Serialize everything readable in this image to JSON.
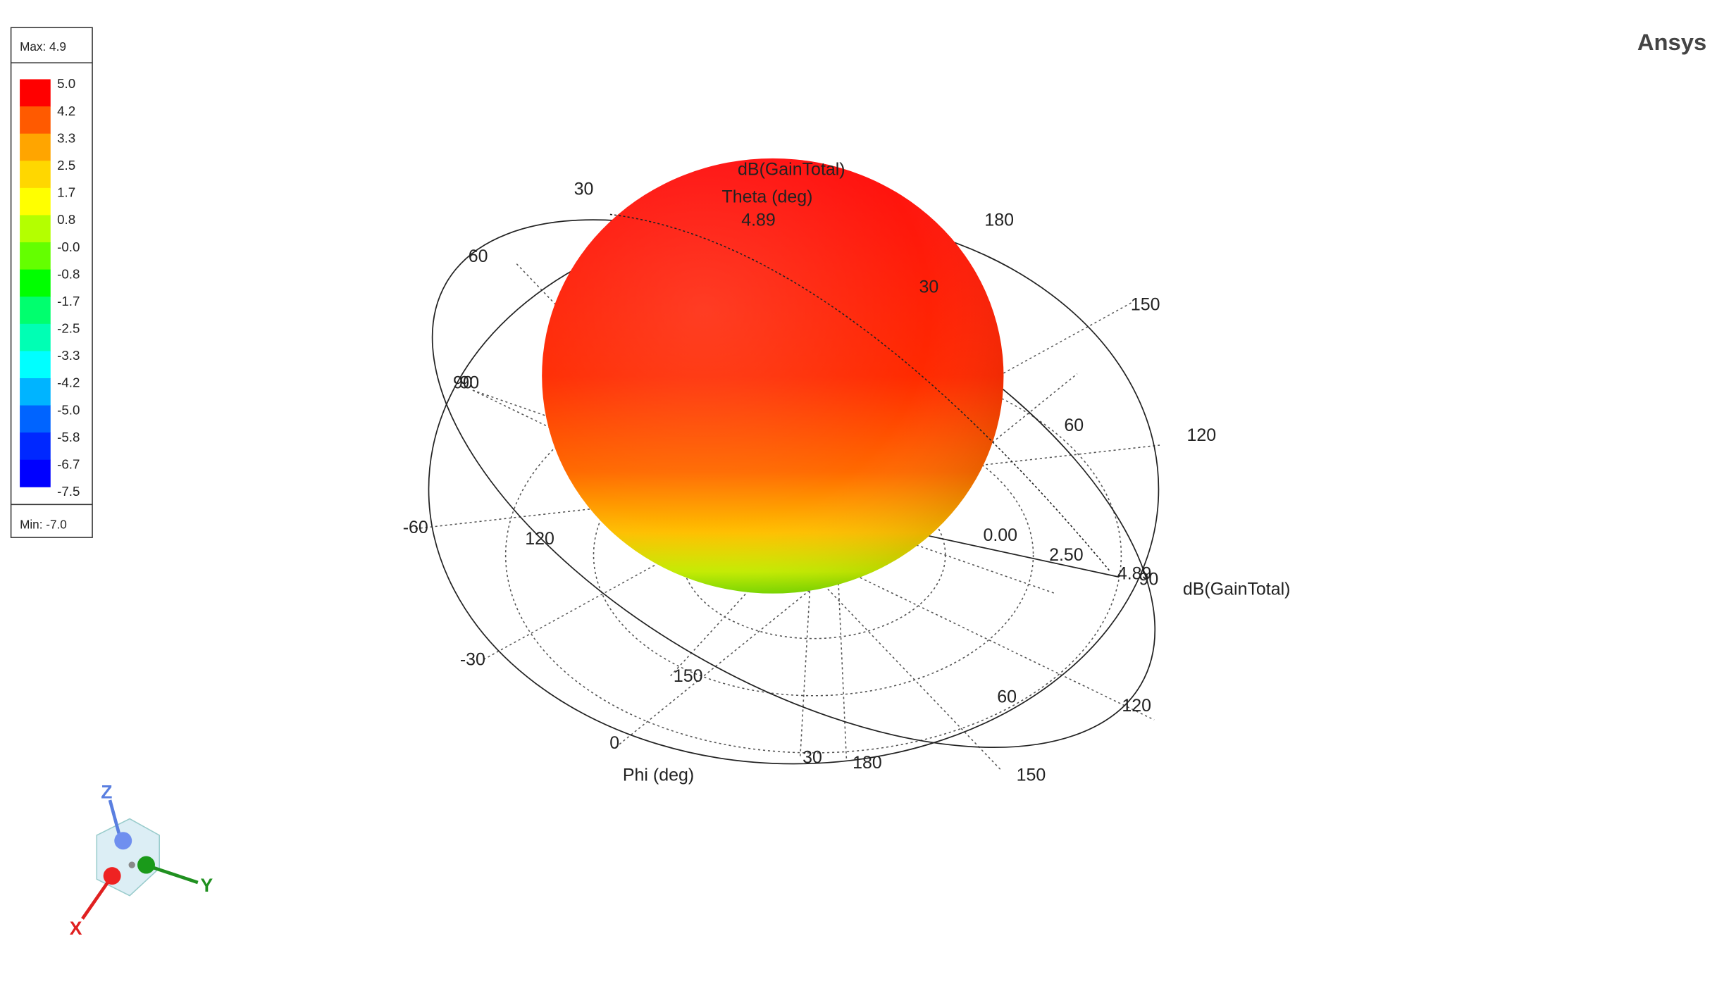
{
  "brand": "Ansys",
  "legend": {
    "max": "Max: 4.9",
    "min": "Min: -7.0",
    "labels": [
      "5.0",
      "4.2",
      "3.3",
      "2.5",
      "1.7",
      "0.8",
      "-0.0",
      "-0.8",
      "-1.7",
      "-2.5",
      "-3.3",
      "-4.2",
      "-5.0",
      "-5.8",
      "-6.7",
      "-7.5"
    ],
    "colors": [
      "#ff0000",
      "#ff5a00",
      "#ffa500",
      "#ffd700",
      "#ffff00",
      "#b4ff00",
      "#64ff00",
      "#00ff00",
      "#00ff6e",
      "#00ffb4",
      "#00ffff",
      "#00b4ff",
      "#0064ff",
      "#0028ff",
      "#0000ff"
    ]
  },
  "plot": {
    "labels": [
      "dB(GainTotal)",
      "Theta (deg)",
      "4.89",
      "30",
      "180",
      "60",
      "30",
      "150",
      "90",
      "90",
      "60",
      "120",
      "-60",
      "120",
      "0.00",
      "2.50",
      "4.89",
      "90",
      "dB(GainTotal)",
      "-30",
      "150",
      "60",
      "120",
      "0",
      "30",
      "180",
      "150",
      "Phi (deg)"
    ]
  },
  "axes_gizmo": {
    "z": "Z",
    "x": "X",
    "y": "Y"
  }
}
